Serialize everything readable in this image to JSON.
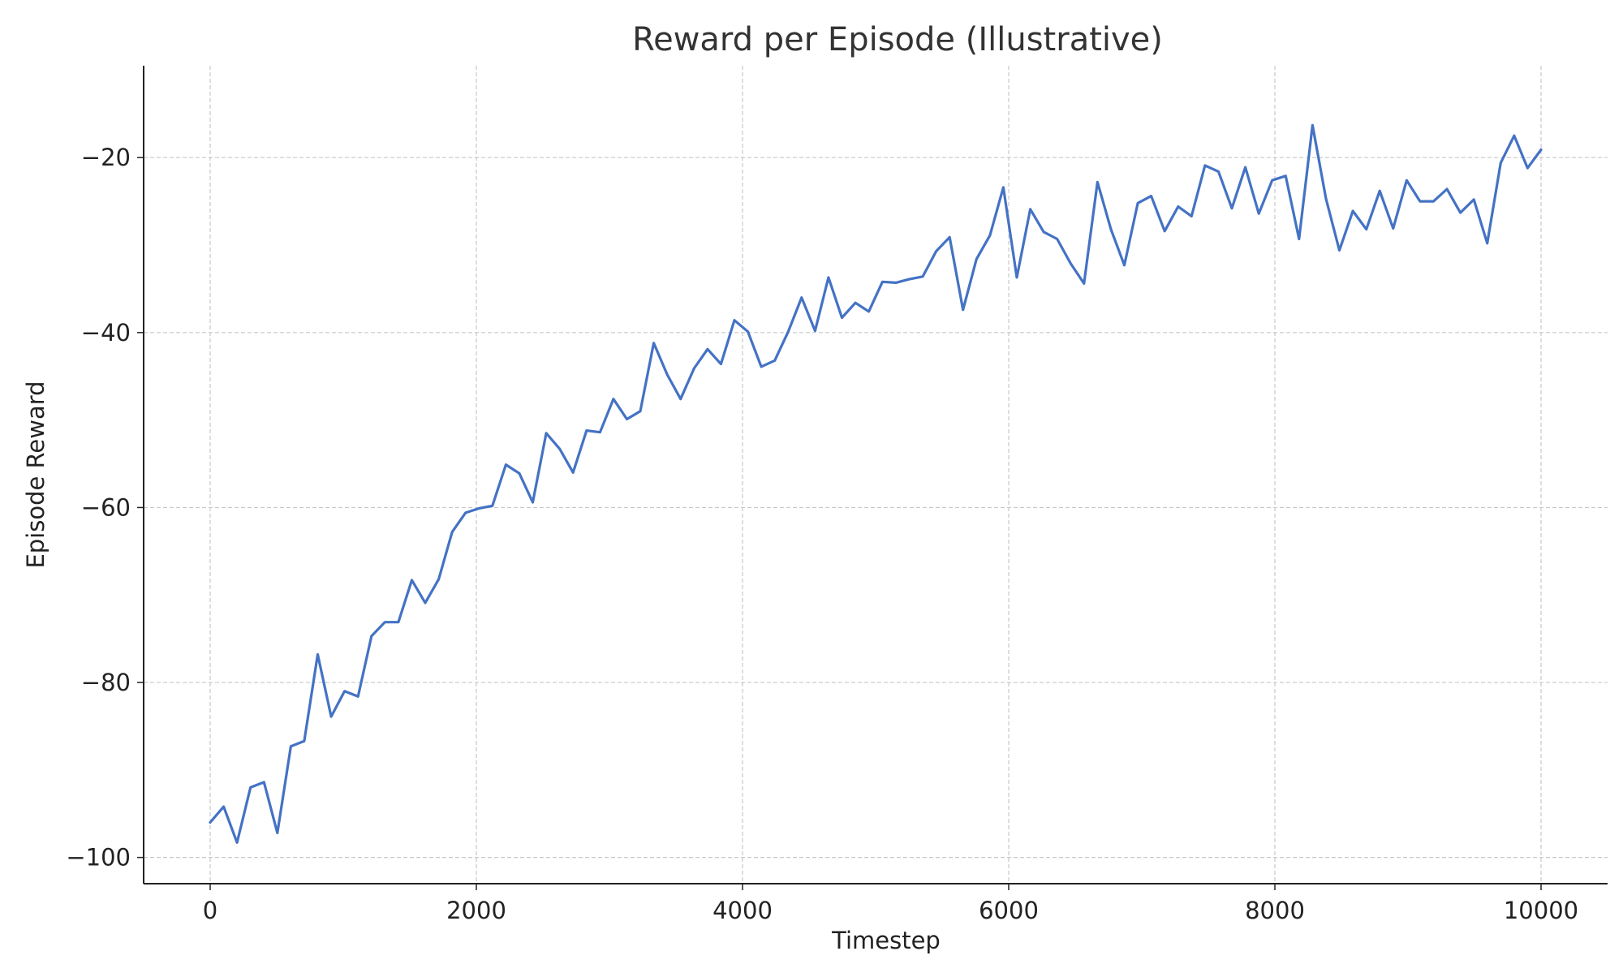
{
  "chart_data": {
    "type": "line",
    "title": "Reward per Episode (Illustrative)",
    "xlabel": "Timestep",
    "ylabel": "Episode Reward",
    "xlim": [
      -500,
      10500
    ],
    "ylim": [
      -103,
      -9.5
    ],
    "xticks": [
      0,
      2000,
      4000,
      6000,
      8000,
      10000
    ],
    "xtick_labels": [
      "0",
      "2000",
      "4000",
      "6000",
      "8000",
      "10000"
    ],
    "yticks": [
      -20,
      -40,
      -60,
      -80,
      -100
    ],
    "ytick_labels": [
      "−20",
      "−40",
      "−60",
      "−80",
      "−100"
    ],
    "grid": true,
    "series": [
      {
        "color": "#4472c4",
        "x": [
          0,
          101,
          202,
          303,
          404,
          505,
          606,
          707,
          808,
          909,
          1010,
          1111,
          1212,
          1313,
          1414,
          1515,
          1616,
          1717,
          1818,
          1919,
          2020,
          2121,
          2222,
          2323,
          2424,
          2525,
          2626,
          2727,
          2828,
          2929,
          3030,
          3131,
          3232,
          3333,
          3434,
          3535,
          3636,
          3737,
          3838,
          3939,
          4040,
          4141,
          4242,
          4343,
          4444,
          4545,
          4646,
          4747,
          4848,
          4949,
          5051,
          5152,
          5253,
          5354,
          5455,
          5556,
          5657,
          5758,
          5859,
          5960,
          6061,
          6162,
          6263,
          6364,
          6465,
          6566,
          6667,
          6768,
          6869,
          6970,
          7071,
          7172,
          7273,
          7374,
          7475,
          7576,
          7677,
          7778,
          7879,
          7980,
          8081,
          8182,
          8283,
          8384,
          8485,
          8586,
          8687,
          8788,
          8889,
          8990,
          9091,
          9192,
          9293,
          9394,
          9495,
          9596,
          9697,
          9798,
          9899,
          10000
        ],
        "y": [
          -96.0,
          -94.2,
          -98.3,
          -92.0,
          -91.4,
          -97.2,
          -87.3,
          -86.7,
          -76.8,
          -83.9,
          -81.0,
          -81.6,
          -74.7,
          -73.1,
          -73.1,
          -68.3,
          -70.9,
          -68.2,
          -62.8,
          -60.6,
          -60.1,
          -59.8,
          -55.1,
          -56.1,
          -59.4,
          -51.5,
          -53.3,
          -56.0,
          -51.2,
          -51.4,
          -47.6,
          -49.9,
          -49.0,
          -41.2,
          -44.8,
          -47.6,
          -44.1,
          -41.9,
          -43.6,
          -38.6,
          -39.9,
          -43.9,
          -43.2,
          -39.9,
          -36.0,
          -39.8,
          -33.7,
          -38.3,
          -36.6,
          -37.6,
          -34.2,
          -34.3,
          -33.9,
          -33.6,
          -30.7,
          -29.1,
          -37.4,
          -31.6,
          -28.9,
          -23.4,
          -33.7,
          -25.9,
          -28.5,
          -29.3,
          -32.1,
          -34.4,
          -22.8,
          -28.2,
          -32.3,
          -25.2,
          -24.4,
          -28.4,
          -25.6,
          -26.7,
          -20.9,
          -21.6,
          -25.8,
          -21.1,
          -26.4,
          -22.6,
          -22.1,
          -29.3,
          -16.3,
          -24.7,
          -30.6,
          -26.1,
          -28.2,
          -23.8,
          -28.1,
          -22.6,
          -25.0,
          -25.0,
          -23.6,
          -26.3,
          -24.8,
          -29.8,
          -20.6,
          -17.5,
          -21.2,
          -19.1
        ]
      }
    ]
  }
}
